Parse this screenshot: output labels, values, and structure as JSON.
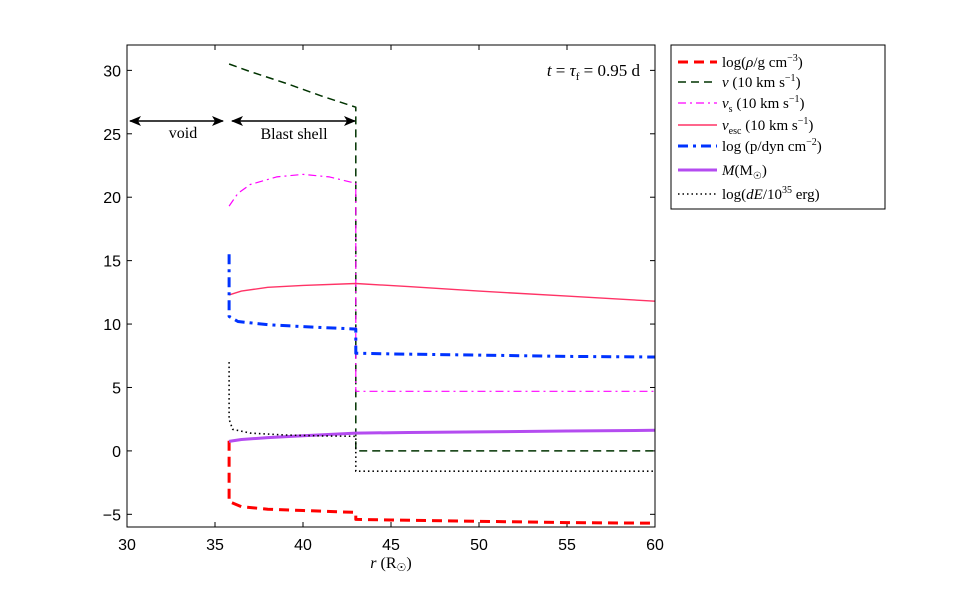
{
  "chart_data": {
    "type": "line",
    "title": "",
    "xlabel": "r (R_sun)",
    "ylabel": "",
    "xlim": [
      30,
      60
    ],
    "ylim": [
      -6,
      32
    ],
    "xticks": [
      30,
      35,
      40,
      45,
      50,
      55,
      60
    ],
    "yticks": [
      -5,
      0,
      5,
      10,
      15,
      20,
      25,
      30
    ],
    "ytick_labels": [
      "−5",
      "0",
      "5",
      "10",
      "15",
      "20",
      "25",
      "30"
    ],
    "legend_position": "outside-right-top",
    "annotations": {
      "time": "t = τf = 0.95 d",
      "void": "void",
      "blast_shell": "Blast shell"
    },
    "series": [
      {
        "name": "log(ρ/g cm⁻³)",
        "color": "#ff0000",
        "style": "dashed-thick",
        "points": [
          [
            35.8,
            0.8
          ],
          [
            35.8,
            -4.0
          ],
          [
            36.5,
            -4.4
          ],
          [
            38,
            -4.6
          ],
          [
            40,
            -4.7
          ],
          [
            42,
            -4.8
          ],
          [
            43,
            -4.85
          ],
          [
            43,
            -5.4
          ],
          [
            45,
            -5.45
          ],
          [
            50,
            -5.55
          ],
          [
            55,
            -5.65
          ],
          [
            60,
            -5.7
          ]
        ]
      },
      {
        "name": "v (10 km s⁻¹)",
        "color": "#003300",
        "style": "dashed",
        "points": [
          [
            35.8,
            30.5
          ],
          [
            37,
            29.9
          ],
          [
            39,
            29
          ],
          [
            41,
            28
          ],
          [
            43,
            27.1
          ],
          [
            43,
            0
          ],
          [
            60,
            0
          ]
        ]
      },
      {
        "name": "v_s (10 km s⁻¹)",
        "color": "#ff00ff",
        "style": "dashdot",
        "points": [
          [
            35.8,
            19.3
          ],
          [
            36.3,
            20.3
          ],
          [
            37,
            21
          ],
          [
            38.5,
            21.6
          ],
          [
            40,
            21.8
          ],
          [
            41.5,
            21.6
          ],
          [
            43,
            21.1
          ],
          [
            43,
            4.7
          ],
          [
            60,
            4.7
          ]
        ]
      },
      {
        "name": "v_esc (10 km s⁻¹)",
        "color": "#ff3366",
        "style": "solid",
        "points": [
          [
            35.8,
            12.3
          ],
          [
            36.5,
            12.6
          ],
          [
            38,
            12.9
          ],
          [
            40,
            13.05
          ],
          [
            43,
            13.2
          ],
          [
            46,
            12.95
          ],
          [
            50,
            12.6
          ],
          [
            55,
            12.2
          ],
          [
            60,
            11.8
          ]
        ]
      },
      {
        "name": "log (p/dyn cm⁻²)",
        "color": "#0033ff",
        "style": "dashdot-thick",
        "points": [
          [
            35.8,
            15.5
          ],
          [
            35.8,
            12.3
          ],
          [
            35.8,
            10.6
          ],
          [
            36.3,
            10.2
          ],
          [
            38,
            9.95
          ],
          [
            40,
            9.8
          ],
          [
            43,
            9.6
          ],
          [
            43,
            7.7
          ],
          [
            45,
            7.65
          ],
          [
            50,
            7.55
          ],
          [
            55,
            7.45
          ],
          [
            60,
            7.4
          ]
        ]
      },
      {
        "name": "M(M_sun)",
        "color": "#b44cf0",
        "style": "solid-thick",
        "points": [
          [
            35.8,
            0.75
          ],
          [
            36.5,
            0.9
          ],
          [
            38,
            1.05
          ],
          [
            40,
            1.2
          ],
          [
            43,
            1.4
          ],
          [
            46,
            1.45
          ],
          [
            50,
            1.5
          ],
          [
            55,
            1.57
          ],
          [
            60,
            1.62
          ]
        ]
      },
      {
        "name": "log(dE/10³⁵ erg)",
        "color": "#000000",
        "style": "dotted",
        "points": [
          [
            35.8,
            7.0
          ],
          [
            35.8,
            2.5
          ],
          [
            36.0,
            1.7
          ],
          [
            37,
            1.4
          ],
          [
            39,
            1.25
          ],
          [
            41,
            1.18
          ],
          [
            43,
            1.15
          ],
          [
            43,
            -1.6
          ],
          [
            60,
            -1.6
          ]
        ]
      }
    ]
  }
}
